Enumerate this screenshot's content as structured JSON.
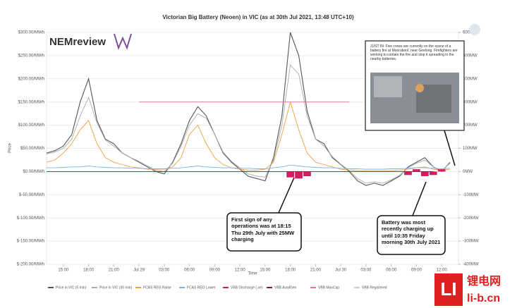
{
  "chart_data": {
    "type": "line",
    "title": "Victorian Big Battery (Neoen) in VIC (as at 30th Jul 2021, 13:48 UTC+10)",
    "x_label": "Time",
    "y_label": "Price",
    "xlim": [
      13,
      62
    ],
    "xticks": [
      {
        "value": 15,
        "label": "15:00"
      },
      {
        "value": 18,
        "label": "18:00"
      },
      {
        "value": 21,
        "label": "21:00"
      },
      {
        "value": 24,
        "label": "Jul 29"
      },
      {
        "value": 27,
        "label": "03:00"
      },
      {
        "value": 30,
        "label": "06:00"
      },
      {
        "value": 33,
        "label": "09:00"
      },
      {
        "value": 36,
        "label": "12:00"
      },
      {
        "value": 39,
        "label": "15:00"
      },
      {
        "value": 42,
        "label": "18:00"
      },
      {
        "value": 45,
        "label": "21:00"
      },
      {
        "value": 48,
        "label": "Jul 30"
      },
      {
        "value": 51,
        "label": "03:00"
      },
      {
        "value": 54,
        "label": "06:00"
      },
      {
        "value": 57,
        "label": "09:00"
      },
      {
        "value": 60,
        "label": "12:00"
      }
    ],
    "ylim": [
      -200,
      300
    ],
    "yticks": [
      {
        "value": 300,
        "label": "$300.00/MWh"
      },
      {
        "value": 250,
        "label": "$250.00/MWh"
      },
      {
        "value": 200,
        "label": "$200.00/MWh"
      },
      {
        "value": 150,
        "label": "$150.00/MWh"
      },
      {
        "value": 100,
        "label": "$100.00/MWh"
      },
      {
        "value": 50,
        "label": "$50.00/MWh"
      },
      {
        "value": 0,
        "label": "$0.00/MWh"
      },
      {
        "value": -50,
        "label": "$-50.00/MWh"
      },
      {
        "value": -100,
        "label": "$-100.00/MWh"
      },
      {
        "value": -150,
        "label": "$-150.00/MWh"
      },
      {
        "value": -200,
        "label": "$-200.00/MWh"
      }
    ],
    "y2lim": [
      -400,
      600
    ],
    "y2ticks": [
      {
        "value": 600,
        "label": "600MW"
      },
      {
        "value": 500,
        "label": "500MW"
      },
      {
        "value": 400,
        "label": "400MW"
      },
      {
        "value": 300,
        "label": "300MW"
      },
      {
        "value": 200,
        "label": "200MW"
      },
      {
        "value": 100,
        "label": "100MW"
      },
      {
        "value": 0,
        "label": "0MW"
      },
      {
        "value": -100,
        "label": "-100MW"
      },
      {
        "value": -200,
        "label": "-200MW"
      },
      {
        "value": -300,
        "label": "-300MW"
      },
      {
        "value": -400,
        "label": "-400MW"
      }
    ],
    "grid": true,
    "x": [
      13,
      14,
      15,
      16,
      17,
      18,
      19,
      20,
      21,
      22,
      23,
      24,
      25,
      26,
      27,
      28,
      29,
      30,
      31,
      32,
      33,
      34,
      35,
      36,
      37,
      38,
      39,
      40,
      41,
      42,
      43,
      44,
      45,
      46,
      47,
      48,
      49,
      50,
      51,
      52,
      53,
      54,
      55,
      56,
      57,
      58,
      59,
      60,
      61
    ],
    "series": [
      {
        "name": "Price in VIC (5 min)",
        "color": "#555555",
        "kind": "line",
        "axis": "y",
        "values": [
          40,
          45,
          55,
          80,
          150,
          200,
          110,
          70,
          60,
          40,
          30,
          20,
          10,
          0,
          -5,
          20,
          60,
          110,
          140,
          120,
          80,
          40,
          20,
          5,
          -10,
          -15,
          -20,
          30,
          120,
          300,
          250,
          130,
          70,
          60,
          30,
          15,
          0,
          -20,
          -30,
          -25,
          -30,
          -20,
          -10,
          10,
          20,
          30,
          10,
          0,
          20
        ]
      },
      {
        "name": "Price in VIC (30 min)",
        "color": "#aaaaaa",
        "kind": "line",
        "axis": "y",
        "values": [
          38,
          42,
          50,
          70,
          120,
          160,
          105,
          68,
          55,
          40,
          30,
          22,
          12,
          3,
          0,
          18,
          55,
          100,
          125,
          115,
          80,
          42,
          22,
          8,
          -5,
          -10,
          -12,
          25,
          100,
          230,
          210,
          120,
          70,
          55,
          32,
          16,
          2,
          -15,
          -25,
          -22,
          -25,
          -18,
          -8,
          8,
          18,
          25,
          10,
          2,
          18
        ]
      },
      {
        "name": "FCAS REG Raise",
        "color": "#f0a040",
        "kind": "line",
        "axis": "y",
        "values": [
          20,
          25,
          40,
          60,
          90,
          110,
          60,
          30,
          20,
          15,
          10,
          8,
          5,
          5,
          5,
          10,
          30,
          80,
          100,
          60,
          30,
          15,
          8,
          5,
          3,
          3,
          5,
          20,
          80,
          150,
          90,
          40,
          20,
          15,
          10,
          5,
          3,
          2,
          2,
          2,
          2,
          2,
          3,
          5,
          8,
          10,
          5,
          3,
          5
        ]
      },
      {
        "name": "FCAS REG Lower",
        "color": "#7fb3e0",
        "kind": "line",
        "axis": "y",
        "values": [
          8,
          8,
          9,
          10,
          10,
          12,
          10,
          9,
          8,
          8,
          7,
          7,
          6,
          6,
          6,
          7,
          8,
          10,
          12,
          10,
          9,
          8,
          8,
          7,
          7,
          6,
          6,
          8,
          10,
          14,
          12,
          10,
          9,
          8,
          8,
          7,
          6,
          6,
          5,
          5,
          5,
          6,
          6,
          7,
          8,
          8,
          7,
          6,
          7
        ]
      },
      {
        "name": "VBB Discharge (-ve)",
        "color": "#d81b60",
        "kind": "bar",
        "axis": "y2",
        "values": [
          null,
          null,
          null,
          null,
          null,
          null,
          null,
          null,
          null,
          null,
          null,
          null,
          null,
          null,
          null,
          null,
          null,
          null,
          null,
          null,
          null,
          null,
          null,
          null,
          null,
          null,
          null,
          null,
          null,
          -25,
          -30,
          -20,
          null,
          null,
          null,
          null,
          null,
          null,
          null,
          null,
          null,
          null,
          null,
          -15,
          10,
          -20,
          -15,
          10,
          null
        ]
      },
      {
        "name": "VBB AvailGen",
        "color": "#8b1a3a",
        "kind": "line",
        "axis": "y2",
        "values": [
          0,
          0,
          0,
          0,
          0,
          0,
          0,
          0,
          0,
          0,
          0,
          0,
          0,
          0,
          0,
          0,
          0,
          0,
          0,
          0,
          0,
          0,
          0,
          0,
          0,
          0,
          0,
          0,
          0,
          0,
          0,
          0,
          0,
          0,
          0,
          0,
          0,
          0,
          0,
          0,
          0,
          0,
          0,
          0,
          0,
          0,
          0,
          null,
          null
        ]
      },
      {
        "name": "VBB MaxCap",
        "color": "#e57390",
        "kind": "line",
        "axis": "y2",
        "values": [
          null,
          null,
          null,
          null,
          null,
          null,
          null,
          null,
          null,
          null,
          null,
          300,
          300,
          300,
          300,
          300,
          300,
          300,
          300,
          300,
          300,
          300,
          300,
          300,
          300,
          300,
          300,
          300,
          300,
          300,
          300,
          300,
          300,
          300,
          300,
          300,
          300,
          null,
          null,
          null,
          null,
          null,
          null,
          null,
          null,
          null,
          null,
          null,
          null
        ]
      },
      {
        "name": "VBB Registered",
        "color": "#cccccc",
        "kind": "line",
        "axis": "y2",
        "values": [
          null,
          null,
          null,
          null,
          null,
          null,
          null,
          null,
          null,
          null,
          null,
          null,
          null,
          null,
          null,
          null,
          null,
          null,
          null,
          null,
          null,
          null,
          null,
          null,
          null,
          null,
          null,
          null,
          null,
          null,
          null,
          null,
          null,
          null,
          null,
          null,
          null,
          null,
          null,
          null,
          null,
          null,
          null,
          null,
          null,
          null,
          null,
          null,
          null
        ]
      }
    ],
    "annotations": [
      {
        "text": "First sign of any operations was at 18:15 Thu 29th July with 25MW charging",
        "x": 42
      },
      {
        "text": "Battery was most recently charging up until 10:35 Friday morning 30th July 2021",
        "x": 58
      }
    ]
  },
  "logo": {
    "name": "NEMreview"
  },
  "inset": {
    "text": "JUST IN: Five crews are currently on the scene of a battery fire at Moorabool, near Geelong. Firefighters are working to contain the fire and stop it spreading to the nearby batteries."
  },
  "watermark": {
    "mark": "LI",
    "name": "锂电网",
    "site": "li-b.cn"
  }
}
